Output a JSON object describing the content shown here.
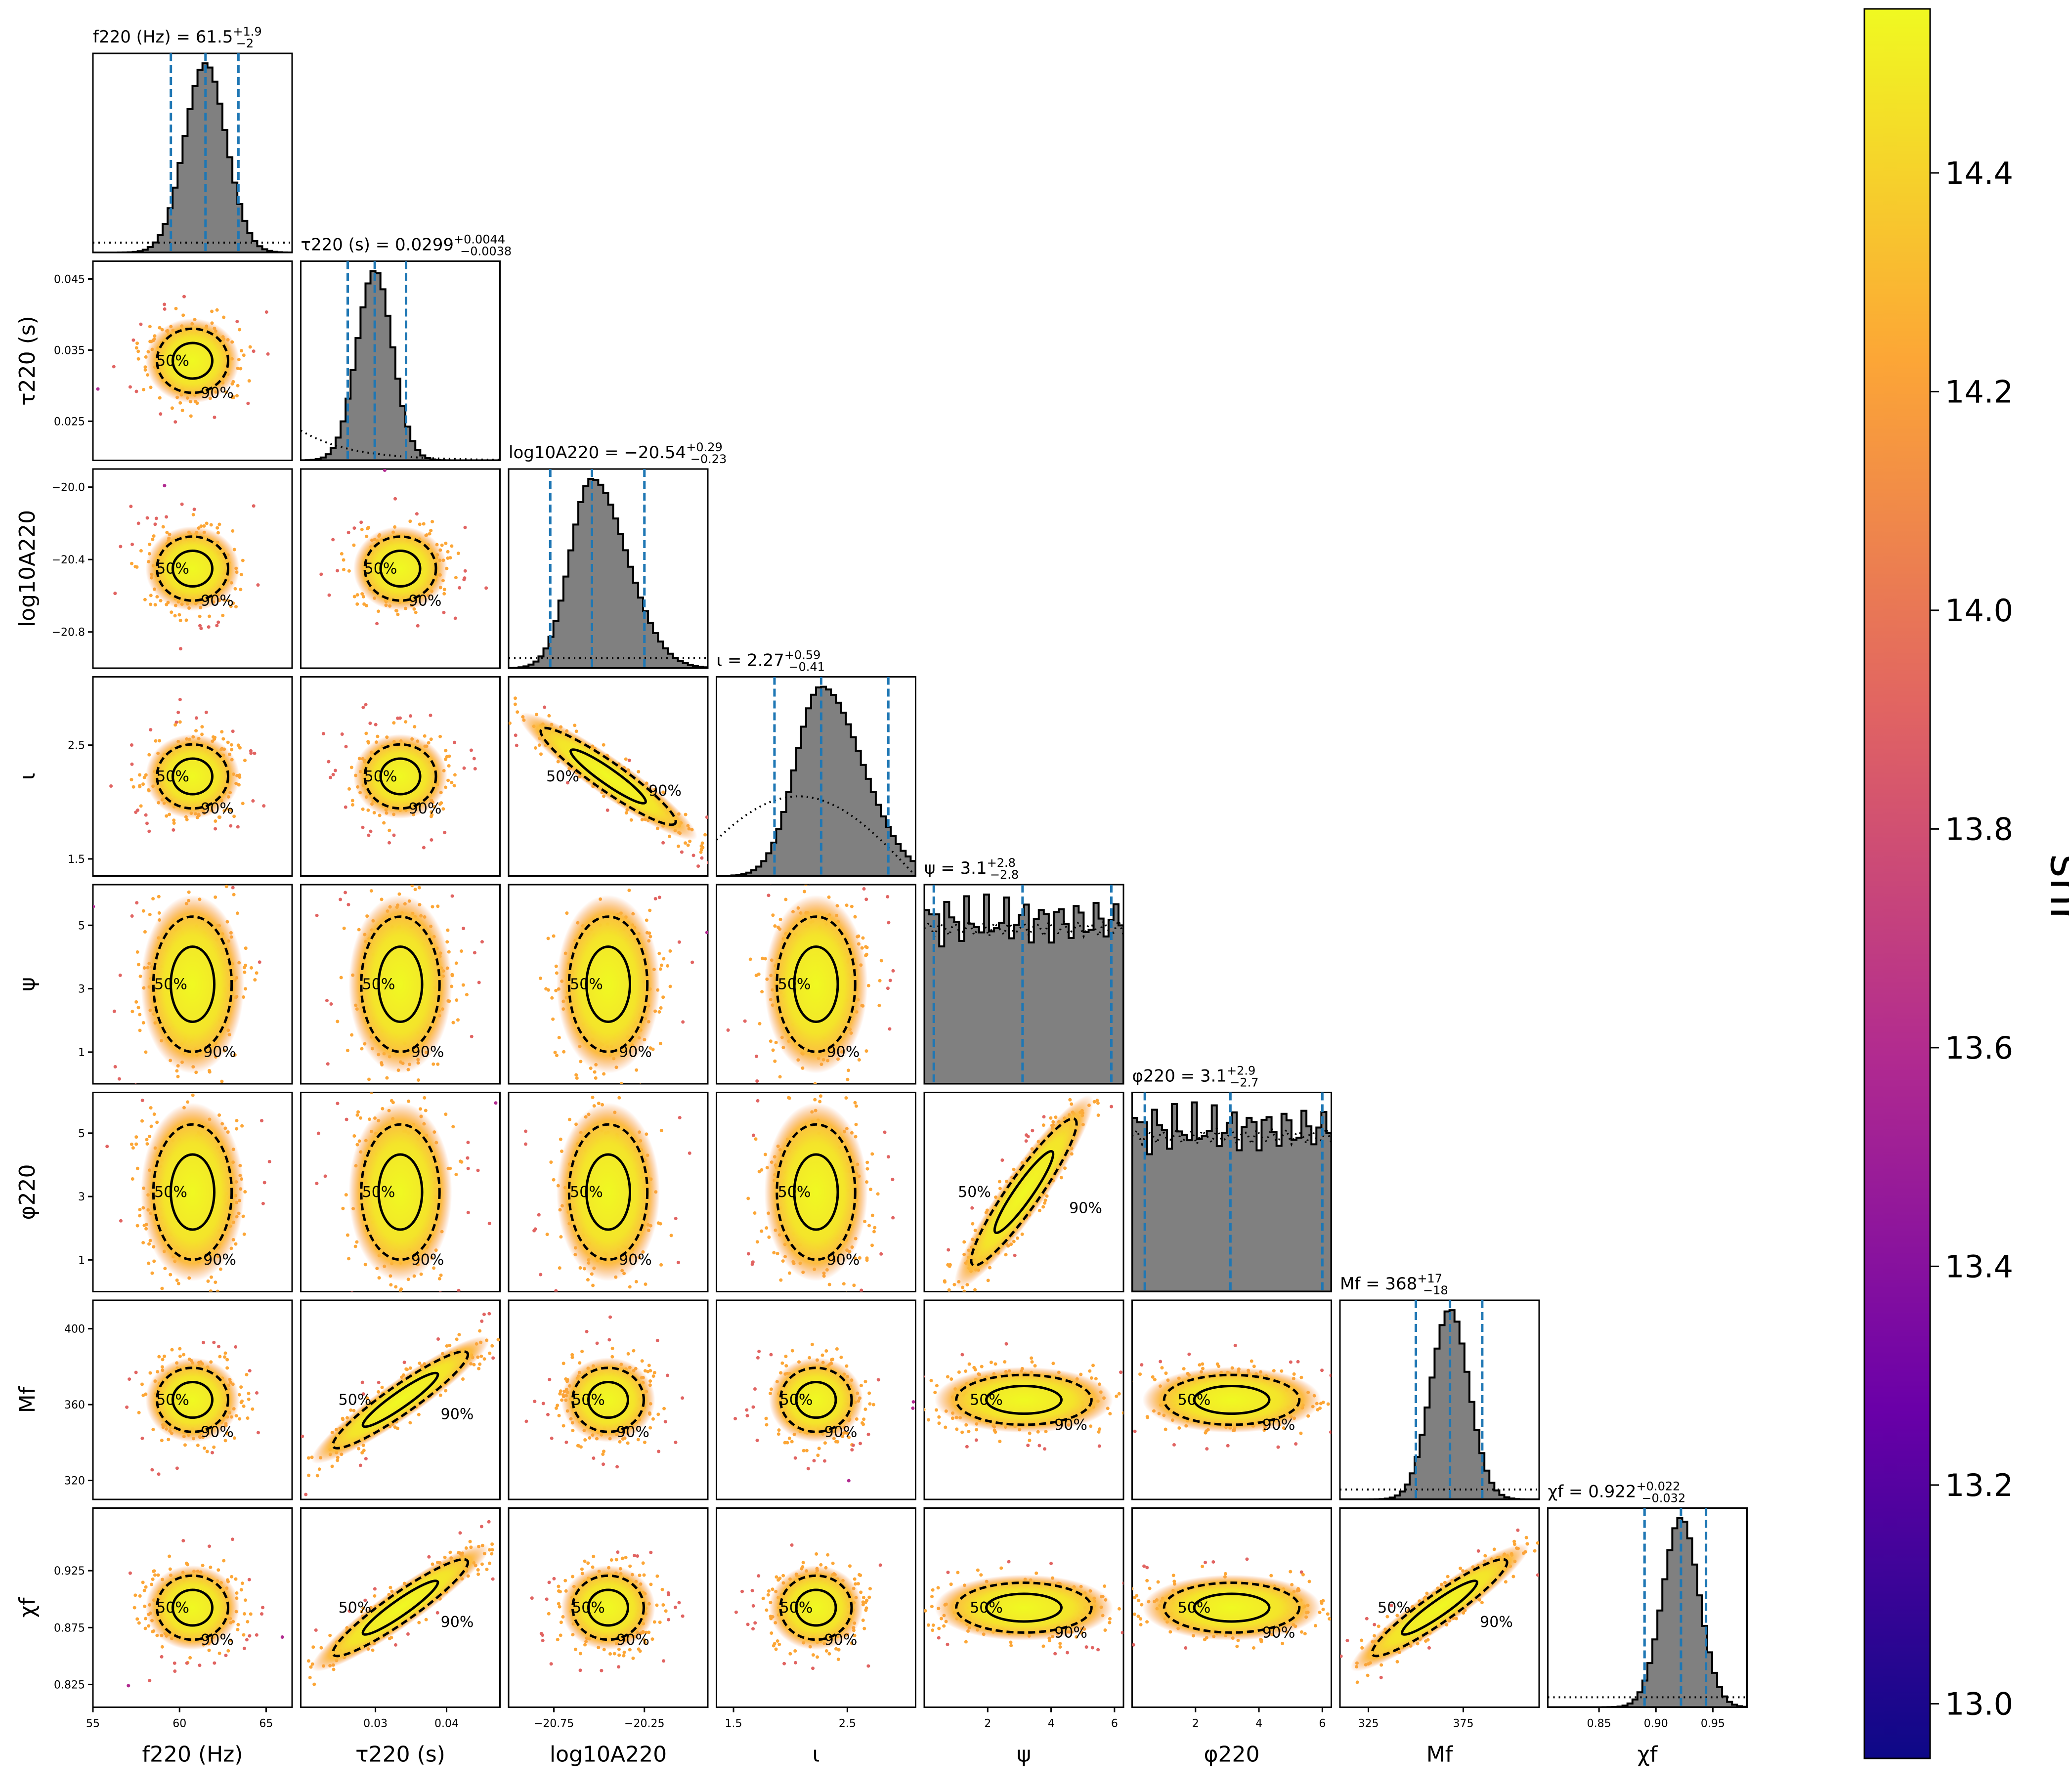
{
  "chart_data": {
    "type": "scatter",
    "plot_kind": "corner",
    "parameters": [
      {
        "key": "f220",
        "label": "f220 (Hz)",
        "ticks": [
          "55",
          "60",
          "65"
        ],
        "tick_values": [
          55,
          60,
          65
        ],
        "range": [
          55,
          66.5
        ]
      },
      {
        "key": "tau220",
        "label": "τ220 (s)",
        "ticks": [
          "0.03",
          "0.04"
        ],
        "tick_values": [
          0.03,
          0.04
        ],
        "range": [
          0.0195,
          0.0475
        ],
        "y_ticks": [
          "0.025",
          "0.035",
          "0.045"
        ],
        "y_tick_values": [
          0.025,
          0.035,
          0.045
        ]
      },
      {
        "key": "logA",
        "label": "log10A220",
        "ticks": [
          "−20.75",
          "−20.25"
        ],
        "tick_values": [
          -20.75,
          -20.25
        ],
        "range": [
          -21.0,
          -19.9
        ],
        "y_ticks": [
          "−20.0",
          "−20.4",
          "−20.8"
        ],
        "y_tick_values": [
          -20.0,
          -20.4,
          -20.8
        ]
      },
      {
        "key": "iota",
        "label": "ι",
        "ticks": [
          "1.5",
          "2.5"
        ],
        "tick_values": [
          1.5,
          2.5
        ],
        "range": [
          1.35,
          3.1
        ],
        "y_ticks": [
          "2.5",
          "1.5"
        ],
        "y_tick_values": [
          2.5,
          1.5
        ]
      },
      {
        "key": "psi",
        "label": "ψ",
        "ticks": [
          "2",
          "4",
          "6"
        ],
        "tick_values": [
          2,
          4,
          6
        ],
        "range": [
          0,
          6.283
        ],
        "y_ticks": [
          "5",
          "3",
          "1"
        ],
        "y_tick_values": [
          5,
          3,
          1
        ]
      },
      {
        "key": "phi220",
        "label": "φ220",
        "ticks": [
          "2",
          "4",
          "6"
        ],
        "tick_values": [
          2,
          4,
          6
        ],
        "range": [
          0,
          6.283
        ],
        "y_ticks": [
          "5",
          "3",
          "1"
        ],
        "y_tick_values": [
          5,
          3,
          1
        ]
      },
      {
        "key": "Mf",
        "label": "Mf",
        "ticks": [
          "325",
          "375"
        ],
        "tick_values": [
          325,
          375
        ],
        "range": [
          310,
          415
        ],
        "y_ticks": [
          "400",
          "360",
          "320"
        ],
        "y_tick_values": [
          400,
          360,
          320
        ]
      },
      {
        "key": "chif",
        "label": "χf",
        "ticks": [
          "0.85",
          "0.90",
          "0.95"
        ],
        "tick_values": [
          0.85,
          0.9,
          0.95
        ],
        "range": [
          0.805,
          0.98
        ],
        "y_ticks": [
          "0.925",
          "0.875",
          "0.825"
        ],
        "y_tick_values": [
          0.925,
          0.875,
          0.825
        ]
      }
    ],
    "marginal_titles": [
      {
        "param": "f220",
        "name": "f220 (Hz)",
        "median": "61.5",
        "plus": "+1.9",
        "minus": "−2"
      },
      {
        "param": "tau220",
        "name": "τ220 (s)",
        "median": "0.0299",
        "plus": "+0.0044",
        "minus": "−0.0038"
      },
      {
        "param": "logA",
        "name": "log10A220",
        "median": "−20.54",
        "plus": "+0.29",
        "minus": "−0.23"
      },
      {
        "param": "iota",
        "name": "ι",
        "median": "2.27",
        "plus": "+0.59",
        "minus": "−0.41"
      },
      {
        "param": "psi",
        "name": "ψ",
        "median": "3.1",
        "plus": "+2.8",
        "minus": "−2.8"
      },
      {
        "param": "phi220",
        "name": "φ220",
        "median": "3.1",
        "plus": "+2.9",
        "minus": "−2.7"
      },
      {
        "param": "Mf",
        "name": "Mf",
        "median": "368",
        "plus": "+17",
        "minus": "−18"
      },
      {
        "param": "chif",
        "name": "χf",
        "median": "0.922",
        "plus": "+0.022",
        "minus": "−0.032"
      }
    ],
    "marginal_posteriors": [
      {
        "param": "f220",
        "mean": 61.5,
        "sd": 1.2,
        "shape": "gaussian",
        "prior": "flat"
      },
      {
        "param": "tau220",
        "mean": 0.0299,
        "sd": 0.0025,
        "shape": "gaussian",
        "prior": "decaying"
      },
      {
        "param": "logA",
        "mean": -20.54,
        "sd": 0.16,
        "shape": "skewed",
        "prior": "flat"
      },
      {
        "param": "iota",
        "mean": 2.27,
        "sd": 0.3,
        "shape": "skewed",
        "prior": "sine"
      },
      {
        "param": "psi",
        "mean": 3.1,
        "sd": null,
        "shape": "uniform",
        "prior": "flat"
      },
      {
        "param": "phi220",
        "mean": 3.1,
        "sd": null,
        "shape": "uniform",
        "prior": "flat"
      },
      {
        "param": "Mf",
        "mean": 368,
        "sd": 10,
        "shape": "gaussian",
        "prior": "flat"
      },
      {
        "param": "chif",
        "mean": 0.922,
        "sd": 0.016,
        "shape": "gaussian",
        "prior": "flat"
      }
    ],
    "contour_labels": [
      "50%",
      "90%"
    ],
    "colorbar": {
      "label": "snr",
      "ticks": [
        "13.0",
        "13.2",
        "13.4",
        "13.6",
        "13.8",
        "14.0",
        "14.2",
        "14.4"
      ],
      "tick_values": [
        13.0,
        13.2,
        13.4,
        13.6,
        13.8,
        14.0,
        14.2,
        14.4
      ],
      "range": [
        12.95,
        14.55
      ],
      "colormap": "plasma"
    },
    "colors": {
      "histogram_fill": "#808080",
      "histogram_edge": "#000000",
      "quantile_lines": "#1f77b4",
      "contours": "#000000",
      "colormap_stops": [
        "#0d0887",
        "#6a00a8",
        "#b12a90",
        "#e16462",
        "#fca636",
        "#f0f921"
      ]
    },
    "legend": "none",
    "grid": false
  }
}
